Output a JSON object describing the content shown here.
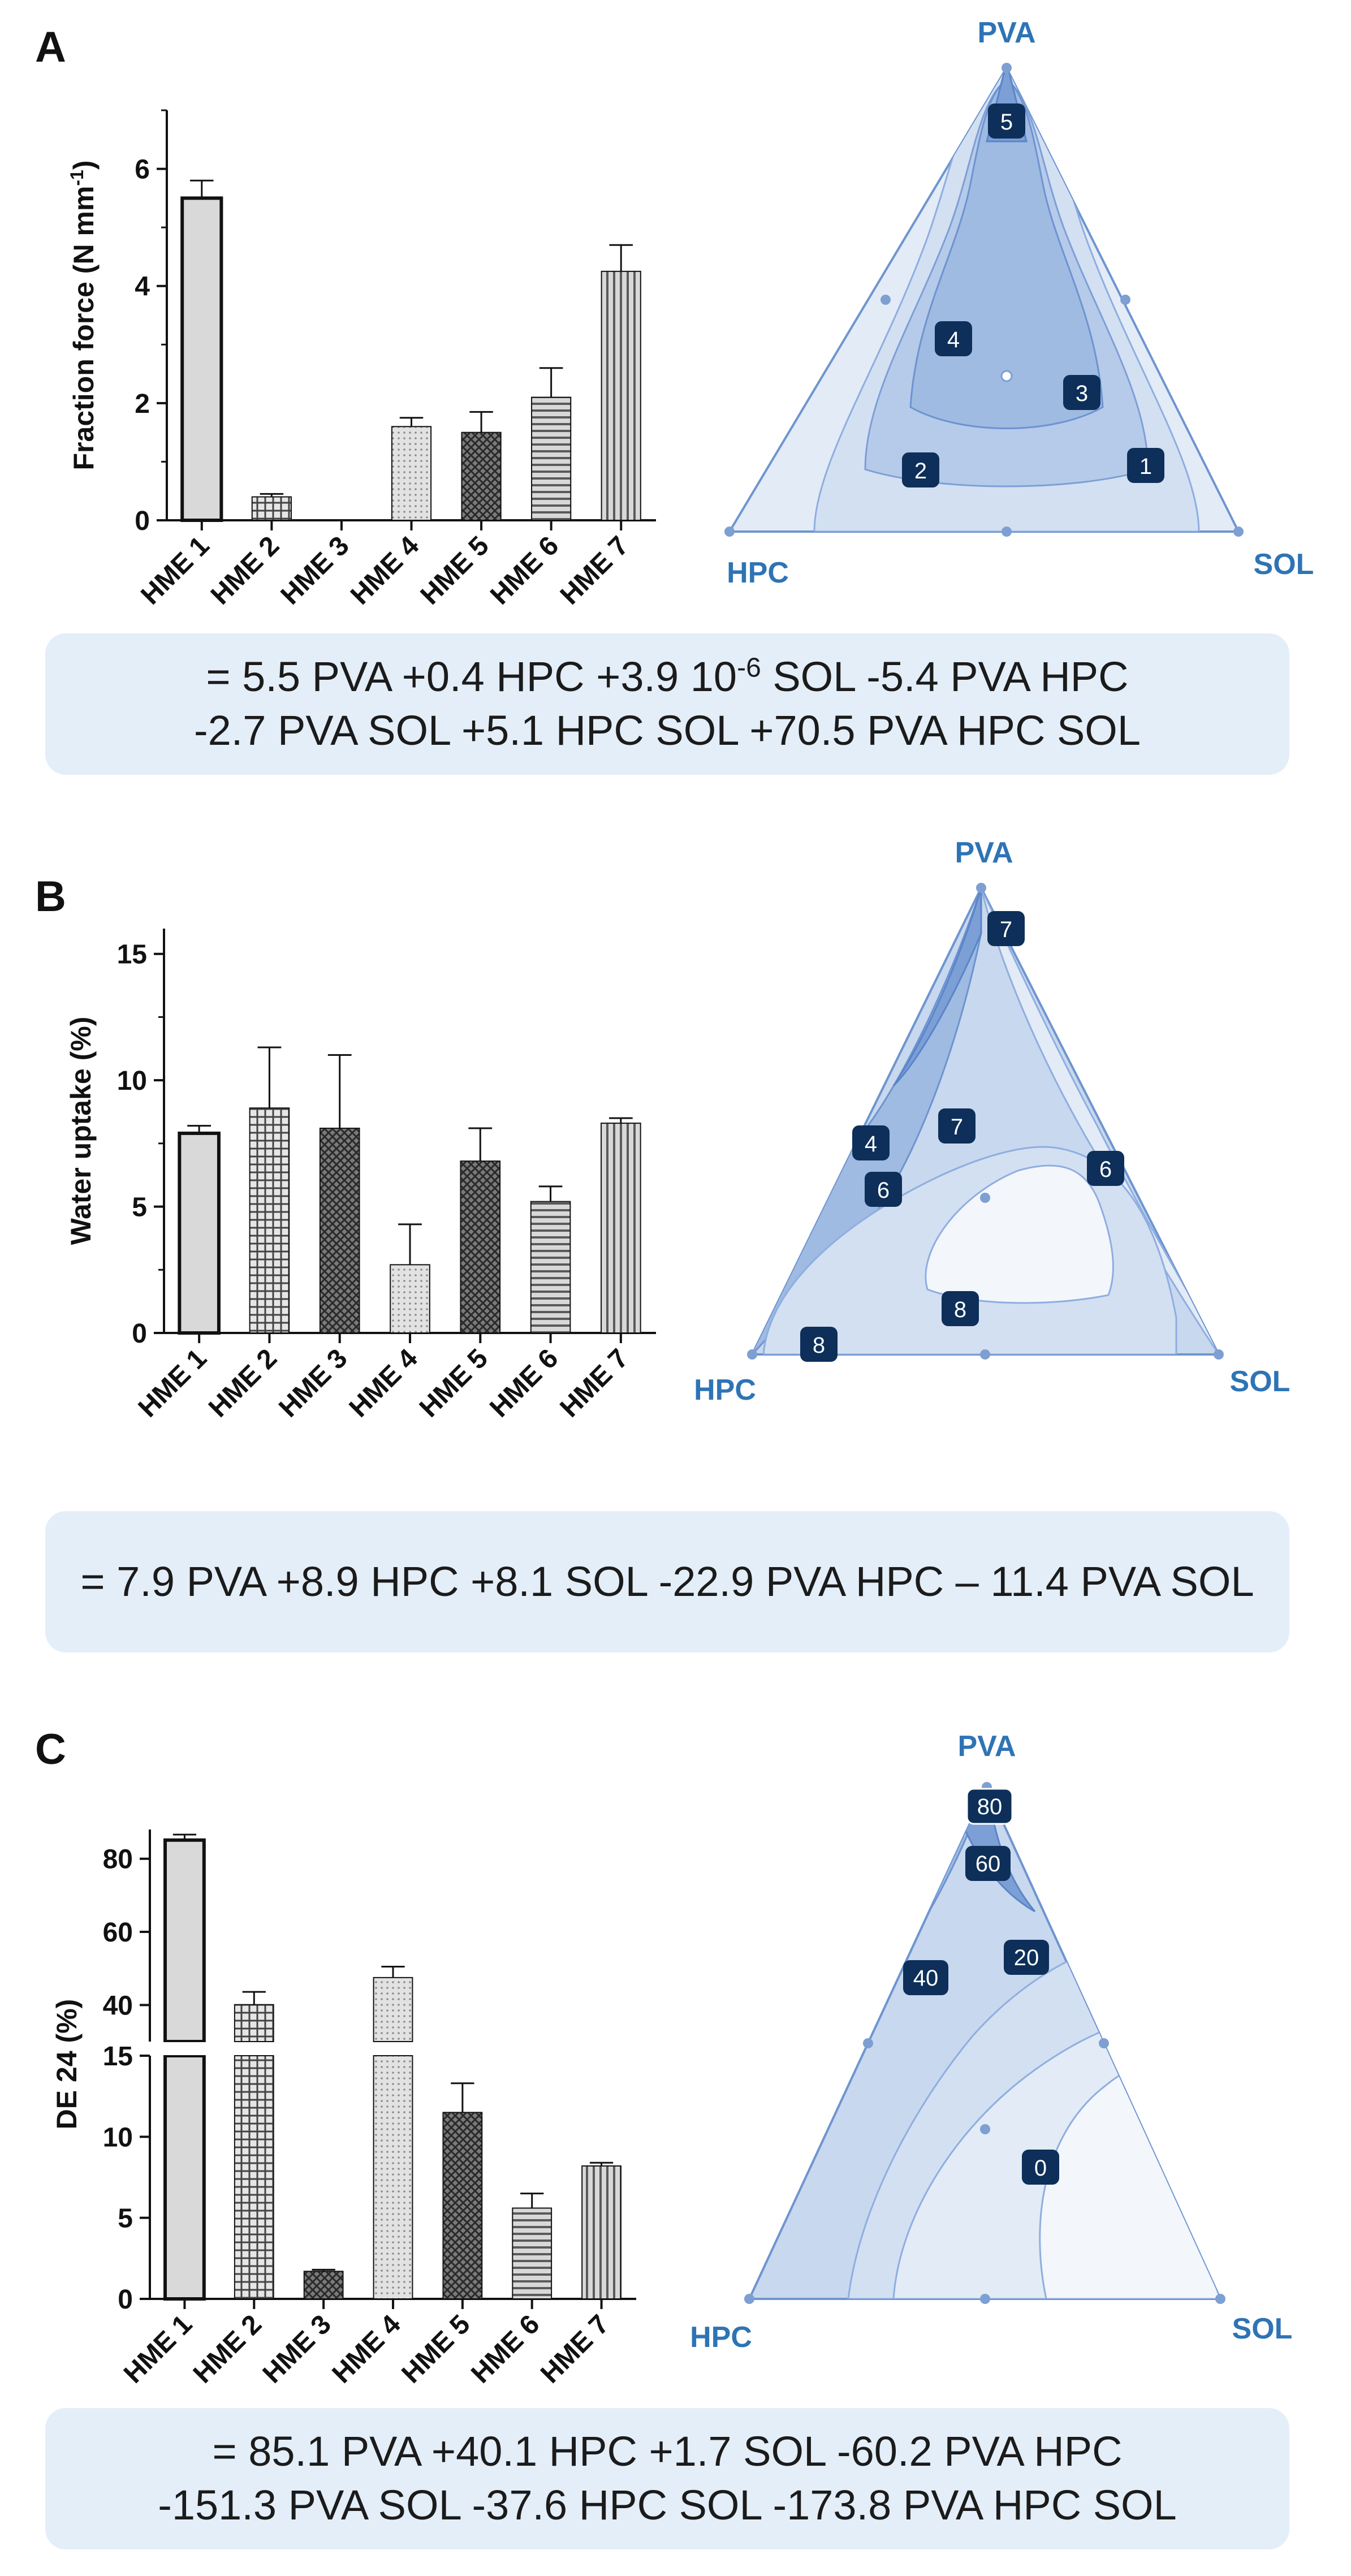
{
  "colors": {
    "tri_outer": "#e3ebf6",
    "tri_mid": "#c8d8ee",
    "tri_dark": "#9fbbe2",
    "tri_darker": "#7c9fd6",
    "tri_edge": "#6e95cf",
    "node": "#7e9fd2",
    "label_box": "#0d2f59",
    "corner_label": "#2e74b5",
    "bar_fill": "#d9d9d9",
    "bar_stroke": "#111111"
  },
  "panels": [
    {
      "letter": "A",
      "chart_data": {
        "type": "bar",
        "ylabel": "Fraction force (N mm",
        "ylabel_sup": "-1",
        "ylabel_end": ")",
        "categories": [
          "HME 1",
          "HME 2",
          "HME 3",
          "HME 4",
          "HME 5",
          "HME 6",
          "HME 7"
        ],
        "values": [
          5.5,
          0.4,
          0,
          1.6,
          1.5,
          2.1,
          4.25
        ],
        "errors": [
          0.3,
          0.05,
          0,
          0.15,
          0.35,
          0.5,
          0.45
        ],
        "patterns": [
          "solid",
          "cross",
          "none",
          "dots",
          "crossdark",
          "hlines",
          "vlines"
        ],
        "ylim": [
          0,
          7
        ],
        "yticks": [
          0,
          2,
          4,
          6
        ]
      },
      "ternary": {
        "corners": {
          "top": "PVA",
          "left": "HPC",
          "right": "SOL"
        },
        "labels": [
          "5",
          "4",
          "3",
          "2",
          "1"
        ]
      },
      "equation": [
        "= 5.5 PVA +0.4 HPC +3.9 10",
        "-6",
        " SOL -5.4 PVA HPC",
        "-2.7 PVA SOL +5.1 HPC SOL +70.5 PVA HPC SOL"
      ]
    },
    {
      "letter": "B",
      "chart_data": {
        "type": "bar",
        "ylabel": "Water uptake (%)",
        "categories": [
          "HME 1",
          "HME 2",
          "HME 3",
          "HME 4",
          "HME 5",
          "HME 6",
          "HME 7"
        ],
        "values": [
          7.9,
          8.9,
          8.1,
          2.7,
          6.8,
          5.2,
          8.3
        ],
        "errors": [
          0.3,
          2.4,
          2.9,
          1.6,
          1.3,
          0.6,
          0.2
        ],
        "patterns": [
          "solid",
          "cross",
          "crossdark",
          "dots",
          "crossdark",
          "hlines",
          "vlines"
        ],
        "ylim": [
          0,
          16
        ],
        "yticks": [
          0,
          5,
          10,
          15
        ]
      },
      "ternary": {
        "corners": {
          "top": "PVA",
          "left": "HPC",
          "right": "SOL"
        },
        "labels": [
          "7",
          "7",
          "4",
          "6",
          "6",
          "8",
          "8"
        ]
      },
      "equation": [
        "= 7.9 PVA +8.9 HPC +8.1 SOL -22.9 PVA HPC – 11.4 PVA SOL"
      ]
    },
    {
      "letter": "C",
      "chart_data": {
        "type": "bar",
        "ylabel": "DE 24 (%)",
        "categories": [
          "HME 1",
          "HME 2",
          "HME 3",
          "HME 4",
          "HME 5",
          "HME 6",
          "HME 7"
        ],
        "values": [
          85.1,
          40.1,
          1.7,
          47.5,
          11.5,
          5.6,
          8.2
        ],
        "errors": [
          1.5,
          3.5,
          0.1,
          3.0,
          1.8,
          0.9,
          0.2
        ],
        "patterns": [
          "solid",
          "cross",
          "crossdark",
          "dots",
          "crossdark",
          "hlines",
          "vlines"
        ],
        "axis_break": true,
        "lower_range": [
          0,
          15
        ],
        "upper_range": [
          30,
          88
        ],
        "yticks_lower": [
          0,
          5,
          10,
          15
        ],
        "yticks_upper": [
          40,
          60,
          80
        ]
      },
      "ternary": {
        "corners": {
          "top": "PVA",
          "left": "HPC",
          "right": "SOL"
        },
        "labels": [
          "80",
          "60",
          "40",
          "20",
          "0"
        ]
      },
      "equation": [
        "= 85.1 PVA +40.1 HPC +1.7 SOL -60.2 PVA HPC",
        "-151.3 PVA SOL -37.6 HPC SOL -173.8 PVA HPC SOL"
      ]
    }
  ]
}
